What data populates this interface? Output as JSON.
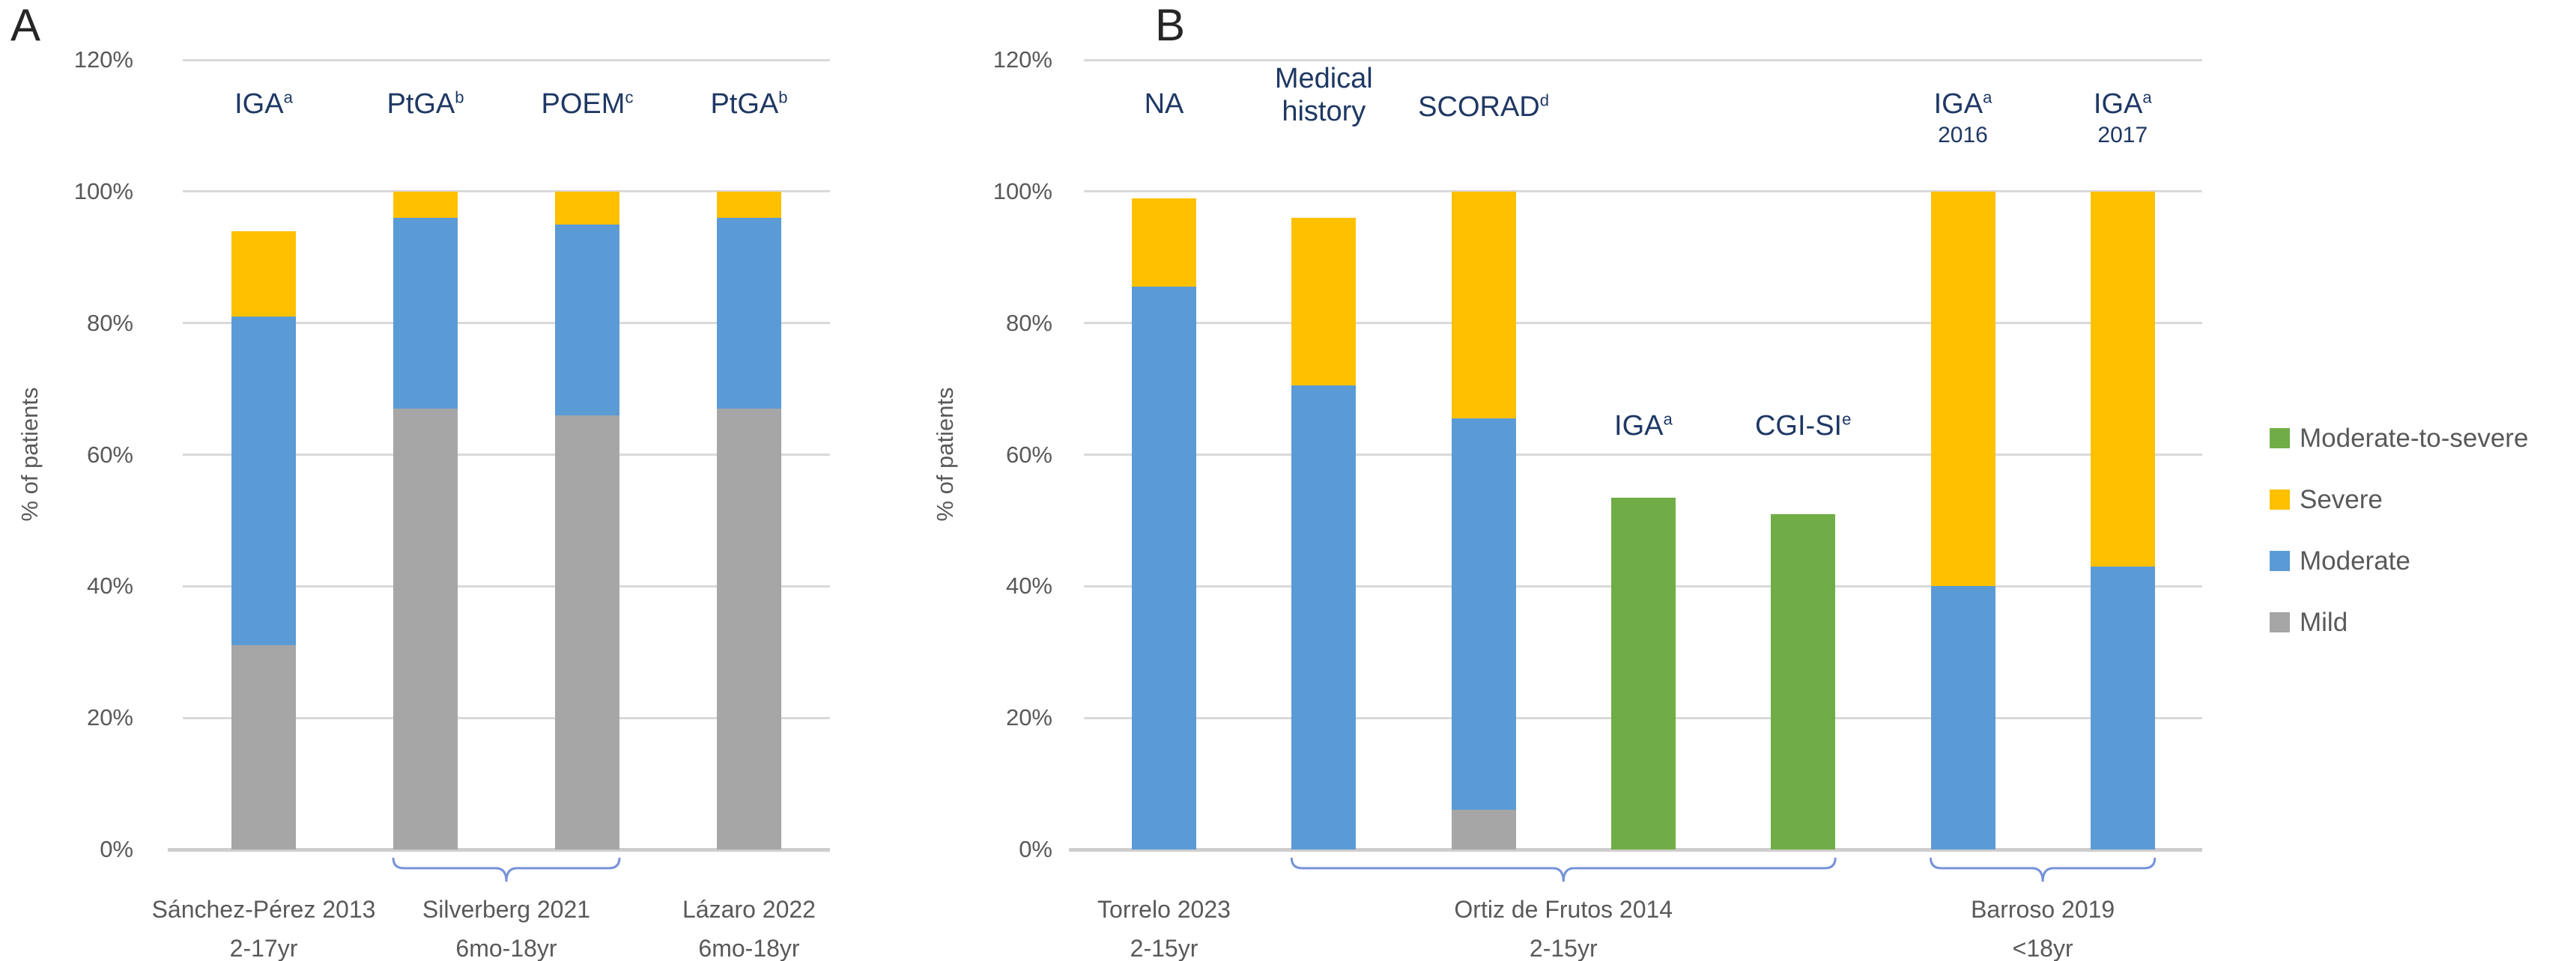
{
  "chart_data": [
    {
      "panel_label": "A",
      "type": "bar",
      "stacked": true,
      "title": "",
      "xlabel": "",
      "ylabel": "% of patients",
      "ylim": [
        0,
        120
      ],
      "grid": true,
      "ytick_labels": [
        "0%",
        "20%",
        "40%",
        "60%",
        "80%",
        "100%",
        "120%"
      ],
      "bars": [
        {
          "measure_lines": [
            "IGA"
          ],
          "sup": "a",
          "label_pos": "top",
          "segments": [
            {
              "severity": "mild",
              "value": 31
            },
            {
              "severity": "moderate",
              "value": 50
            },
            {
              "severity": "severe",
              "value": 13
            }
          ]
        },
        {
          "measure_lines": [
            "PtGA"
          ],
          "sup": "b",
          "label_pos": "top",
          "segments": [
            {
              "severity": "mild",
              "value": 67
            },
            {
              "severity": "moderate",
              "value": 29
            },
            {
              "severity": "severe",
              "value": 4
            }
          ]
        },
        {
          "measure_lines": [
            "POEM"
          ],
          "sup": "c",
          "label_pos": "top",
          "segments": [
            {
              "severity": "mild",
              "value": 66
            },
            {
              "severity": "moderate",
              "value": 29
            },
            {
              "severity": "severe",
              "value": 5
            }
          ]
        },
        {
          "measure_lines": [
            "PtGA"
          ],
          "sup": "b",
          "label_pos": "top",
          "segments": [
            {
              "severity": "mild",
              "value": 67
            },
            {
              "severity": "moderate",
              "value": 29
            },
            {
              "severity": "severe",
              "value": 4
            }
          ]
        }
      ],
      "groups": [
        {
          "study": "Sánchez-Pérez 2013",
          "age": "2-17yr",
          "bar_indices": [
            0
          ],
          "brace": false
        },
        {
          "study": "Silverberg 2021",
          "age": "6mo-18yr",
          "bar_indices": [
            1,
            2
          ],
          "brace": true
        },
        {
          "study": "Lázaro 2022",
          "age": "6mo-18yr",
          "bar_indices": [
            3
          ],
          "brace": false
        }
      ]
    },
    {
      "panel_label": "B",
      "type": "bar",
      "stacked": true,
      "title": "",
      "xlabel": "",
      "ylabel": "% of patients",
      "ylim": [
        0,
        120
      ],
      "grid": true,
      "ytick_labels": [
        "0%",
        "20%",
        "40%",
        "60%",
        "80%",
        "100%",
        "120%"
      ],
      "bars": [
        {
          "measure_lines": [
            "NA"
          ],
          "label_pos": "top",
          "segments": [
            {
              "severity": "moderate",
              "value": 85.5
            },
            {
              "severity": "severe",
              "value": 13.5
            }
          ]
        },
        {
          "measure_lines": [
            "Medical",
            "history"
          ],
          "label_pos": "top2",
          "segments": [
            {
              "severity": "moderate",
              "value": 70.5
            },
            {
              "severity": "severe",
              "value": 25.5
            }
          ]
        },
        {
          "measure_lines": [
            "SCORAD"
          ],
          "sup": "d",
          "label_pos": "top-low",
          "segments": [
            {
              "severity": "mild",
              "value": 6
            },
            {
              "severity": "moderate",
              "value": 59.5
            },
            {
              "severity": "severe",
              "value": 34.5
            }
          ]
        },
        {
          "measure_lines": [
            "IGA"
          ],
          "sup": "a",
          "label_pos": "mid",
          "segments": [
            {
              "severity": "moderate_to_severe",
              "value": 53.5
            }
          ]
        },
        {
          "measure_lines": [
            "CGI-SI"
          ],
          "sup": "e",
          "label_pos": "mid",
          "segments": [
            {
              "severity": "moderate_to_severe",
              "value": 51
            }
          ]
        },
        {
          "measure_lines": [
            "IGA"
          ],
          "sup": "a",
          "sub": "2016",
          "label_pos": "top",
          "segments": [
            {
              "severity": "moderate",
              "value": 40
            },
            {
              "severity": "severe",
              "value": 60
            }
          ]
        },
        {
          "measure_lines": [
            "IGA"
          ],
          "sup": "a",
          "sub": "2017",
          "label_pos": "top",
          "segments": [
            {
              "severity": "moderate",
              "value": 43
            },
            {
              "severity": "severe",
              "value": 57
            }
          ]
        }
      ],
      "groups": [
        {
          "study": "Torrelo 2023",
          "age": "2-15yr",
          "bar_indices": [
            0
          ],
          "brace": false
        },
        {
          "study": "Ortiz de Frutos 2014",
          "age": "2-15yr",
          "bar_indices": [
            1,
            2,
            3,
            4
          ],
          "brace": true
        },
        {
          "study": "Barroso 2019",
          "age": "<18yr",
          "bar_indices": [
            5,
            6
          ],
          "brace": true
        }
      ]
    }
  ],
  "legend": {
    "position": "right",
    "items": [
      {
        "label": "Moderate-to-severe",
        "severity": "moderate_to_severe",
        "color": "#70AD47"
      },
      {
        "label": "Severe",
        "severity": "severe",
        "color": "#FFC000"
      },
      {
        "label": "Moderate",
        "severity": "moderate",
        "color": "#5B9BD5"
      },
      {
        "label": "Mild",
        "severity": "mild",
        "color": "#A6A6A6"
      }
    ]
  },
  "colors": {
    "mild": "#A6A6A6",
    "moderate": "#5B9BD5",
    "moderate_to_severe": "#70AD47",
    "severe": "#FFC000",
    "measure_label": "#1F3864",
    "axis_text": "#595959",
    "gridline": "#D9D9D9",
    "brace": "#7593D8"
  }
}
